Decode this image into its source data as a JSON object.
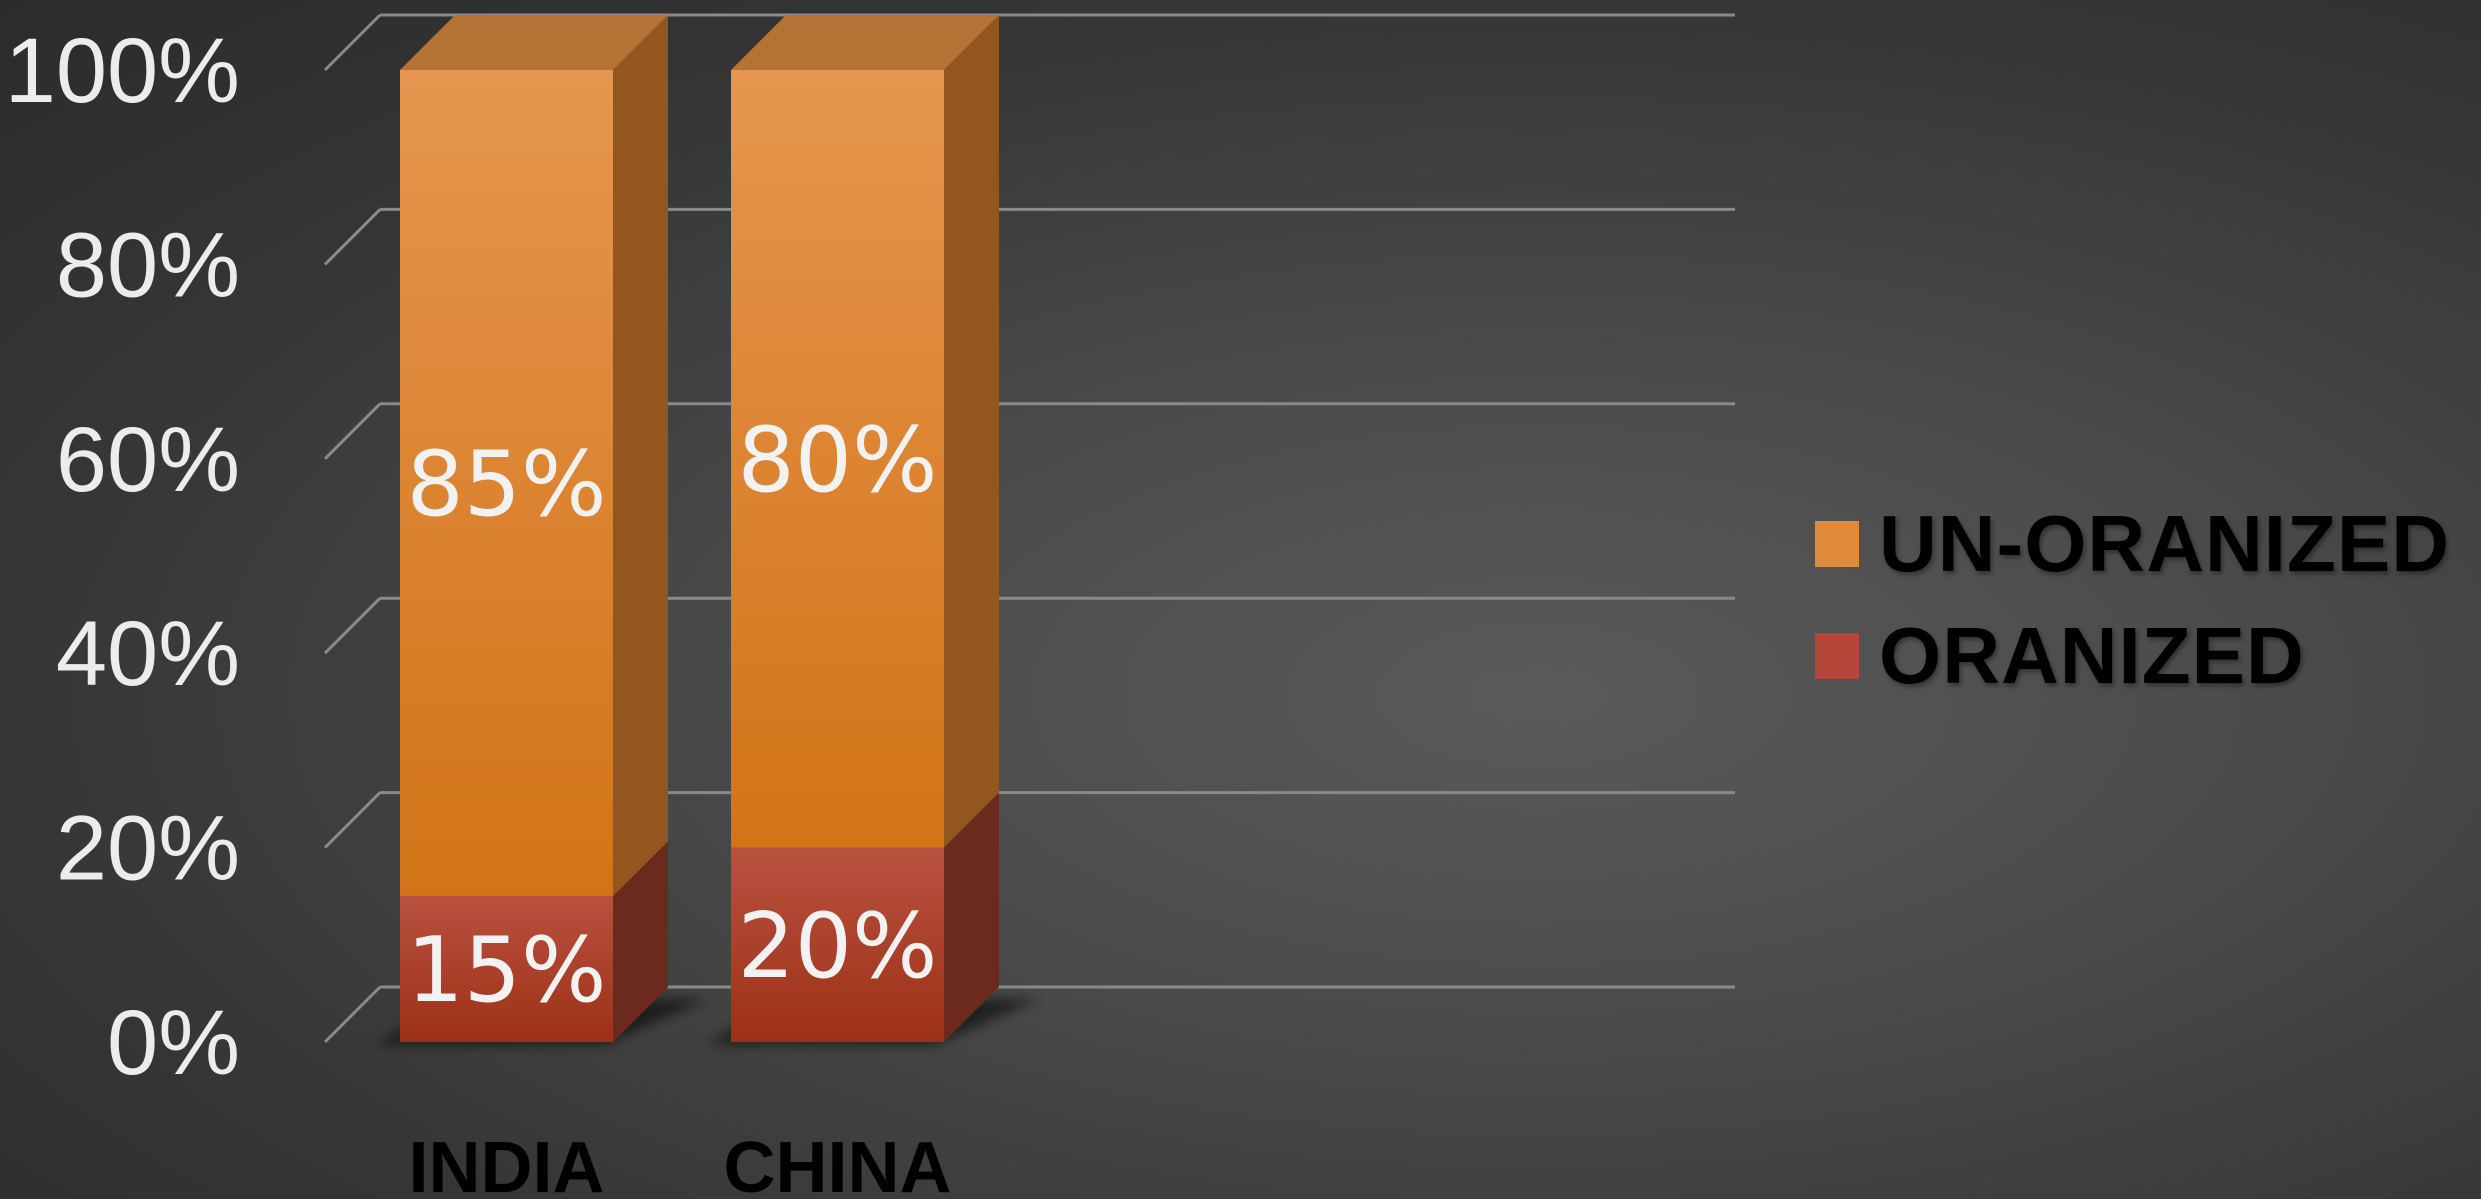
{
  "chart_data": {
    "type": "bar",
    "stacked": true,
    "percent_stacked": true,
    "three_d": true,
    "categories": [
      "INDIA",
      "CHINA"
    ],
    "series": [
      {
        "name": "ORANIZED",
        "values": [
          15,
          20
        ],
        "labels": [
          "15%",
          "20%"
        ],
        "color": "#b5473a"
      },
      {
        "name": "UN-ORANIZED",
        "values": [
          85,
          80
        ],
        "labels": [
          "85%",
          "80%"
        ],
        "color": "#e08a3c"
      }
    ],
    "ylim": [
      0,
      100
    ],
    "yticks": [
      0,
      20,
      40,
      60,
      80,
      100
    ],
    "ytick_labels": [
      "0%",
      "20%",
      "40%",
      "60%",
      "80%",
      "100%"
    ],
    "title": "",
    "xlabel": "",
    "ylabel": "",
    "grid": true,
    "legend_position": "right",
    "legend_order": [
      "UN-ORANIZED",
      "ORANIZED"
    ],
    "legend_colors": [
      "#e08a3c",
      "#b5473a"
    ]
  }
}
